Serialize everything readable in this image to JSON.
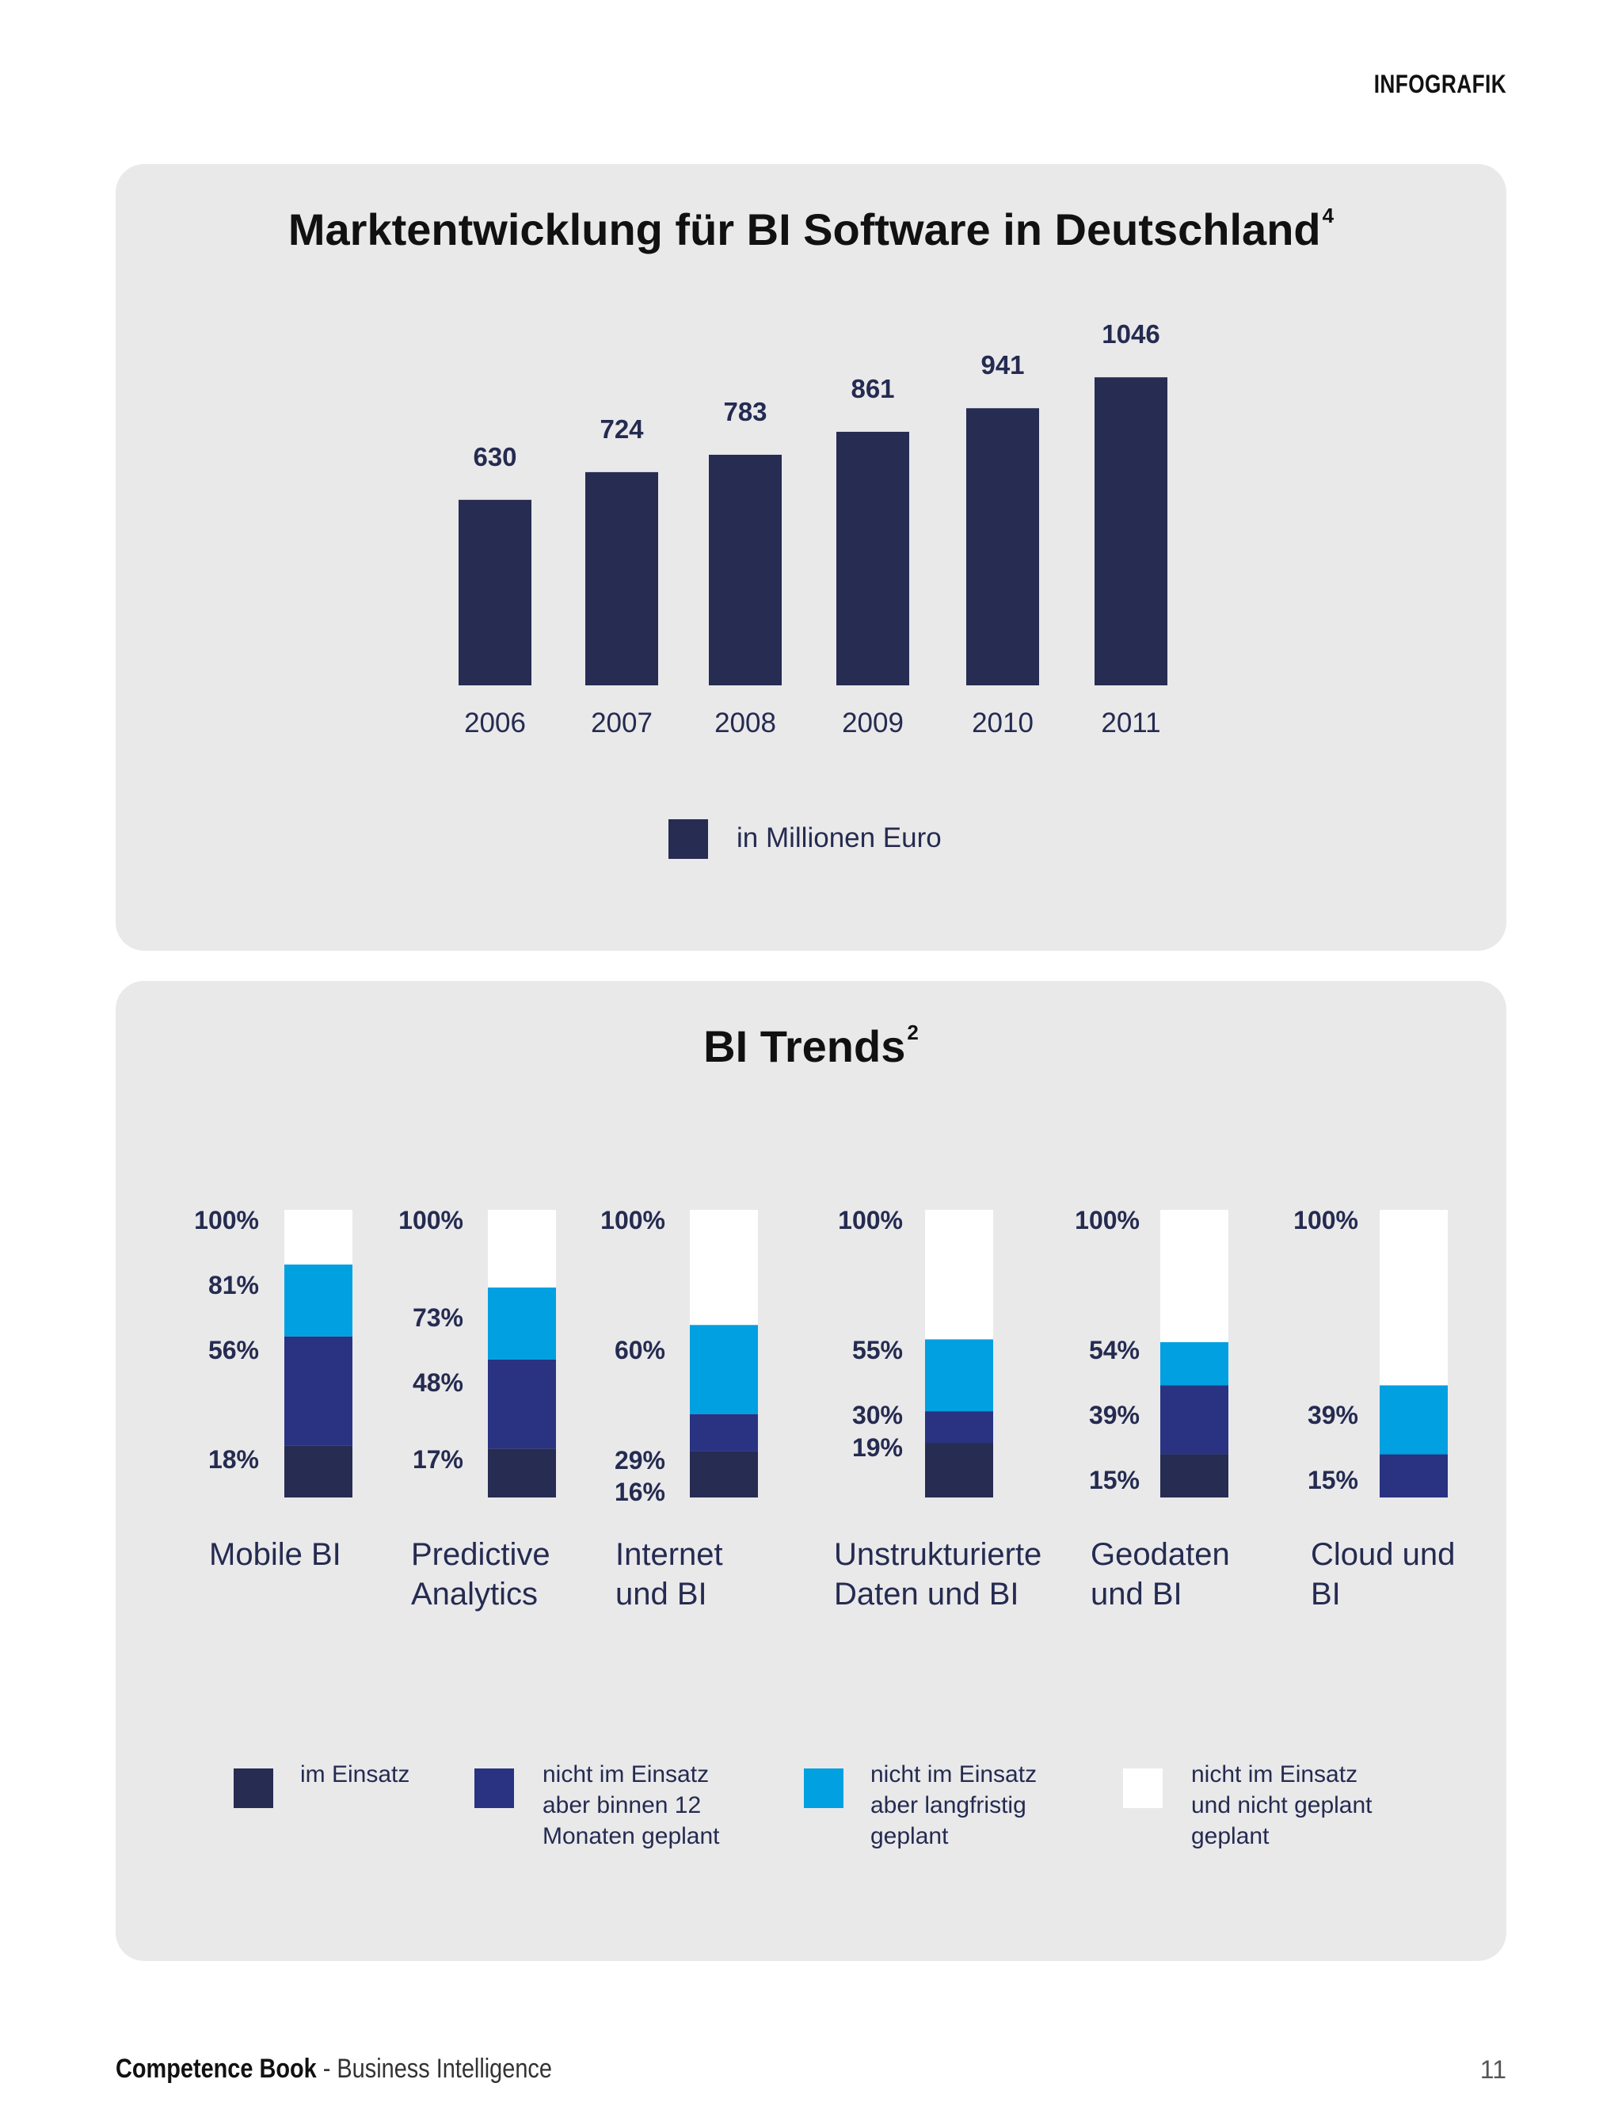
{
  "header": {
    "label": "INFOGRAFIK"
  },
  "colors": {
    "navy": "#262c52",
    "blue": "#293382",
    "cyan": "#00a0e1",
    "white": "#ffffff",
    "panel": "#e9e9ea"
  },
  "chart_data": [
    {
      "type": "bar",
      "title": "Marktentwicklung für BI Software in Deutschland",
      "title_footnote": "4",
      "categories": [
        "2006",
        "2007",
        "2008",
        "2009",
        "2010",
        "2011"
      ],
      "values": [
        630,
        724,
        783,
        861,
        941,
        1046
      ],
      "value_labels": [
        "630",
        "724",
        "783",
        "861",
        "941",
        "1046"
      ],
      "legend": [
        {
          "label": "in Millionen Euro",
          "color": "#262c52"
        }
      ],
      "xlabel": "",
      "ylabel": "",
      "ylim": [
        0,
        1100
      ]
    },
    {
      "type": "bar",
      "stacked": true,
      "title": "BI Trends",
      "title_footnote": "2",
      "categories": [
        [
          "Mobile BI"
        ],
        [
          "Predictive",
          "Analytics"
        ],
        [
          "Internet",
          "und BI"
        ],
        [
          "Unstrukturierte",
          "Daten und BI"
        ],
        [
          "Geodaten",
          "und BI"
        ],
        [
          "Cloud und",
          "BI"
        ]
      ],
      "series": [
        {
          "name": "im Einsatz",
          "color": "#262c52",
          "values": [
            18,
            17,
            16,
            19,
            15,
            0
          ]
        },
        {
          "name": "nicht im Einsatz aber binnen 12 Monaten geplant",
          "color": "#293382",
          "values": [
            38,
            31,
            13,
            11,
            24,
            15
          ]
        },
        {
          "name": "nicht im Einsatz aber langfristig geplant",
          "color": "#00a0e1",
          "values": [
            25,
            25,
            31,
            25,
            15,
            24
          ]
        },
        {
          "name": "nicht im Einsatz und nicht geplant geplant",
          "color": "#ffffff",
          "values": [
            19,
            27,
            40,
            45,
            46,
            61
          ]
        }
      ],
      "bar_labels": [
        [
          "100%",
          "81%",
          "56%",
          "18%"
        ],
        [
          "100%",
          "73%",
          "48%",
          "17%"
        ],
        [
          "100%",
          "60%",
          "29%",
          "16%"
        ],
        [
          "100%",
          "55%",
          "30%",
          "19%"
        ],
        [
          "100%",
          "54%",
          "39%",
          "15%"
        ],
        [
          "100%",
          "39%",
          "15%"
        ]
      ],
      "legend": [
        {
          "label": [
            "im Einsatz"
          ],
          "color": "#262c52"
        },
        {
          "label": [
            "nicht im Einsatz",
            "aber binnen 12",
            "Monaten geplant"
          ],
          "color": "#293382"
        },
        {
          "label": [
            "nicht im Einsatz",
            "aber langfristig",
            "geplant"
          ],
          "color": "#00a0e1"
        },
        {
          "label": [
            "nicht im Einsatz",
            "und nicht geplant",
            "geplant"
          ],
          "color": "#ffffff"
        }
      ],
      "ylim": [
        0,
        100
      ]
    }
  ],
  "footer": {
    "brand": "Competence Book",
    "separator": " - ",
    "subtitle": "Business Intelligence",
    "page_number": "11"
  }
}
